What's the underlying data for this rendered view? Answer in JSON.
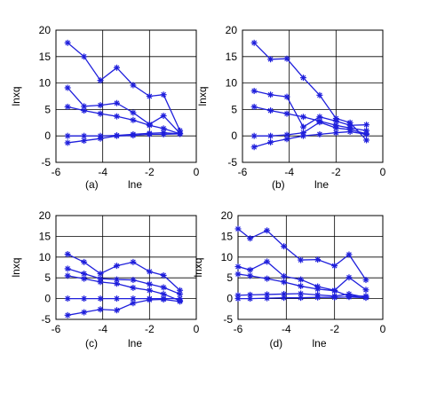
{
  "colors": {
    "series": "#1f1fdc",
    "axis": "#000000"
  },
  "chart_data": [
    {
      "type": "line",
      "panel": "(a)",
      "xlabel": "lne",
      "ylabel": "lnxq",
      "xlim": [
        -6,
        0
      ],
      "ylim": [
        -5,
        20
      ],
      "xticks": [
        -6,
        -4,
        -2,
        0
      ],
      "yticks": [
        -5,
        0,
        5,
        10,
        15,
        20
      ],
      "grid": true,
      "x": [
        -5.5,
        -4.8,
        -4.1,
        -3.4,
        -2.7,
        -2.0,
        -1.4,
        -0.7
      ],
      "series": [
        {
          "values": [
            17.6,
            15.0,
            10.5,
            12.9,
            9.6,
            7.5,
            7.8,
            1.0
          ]
        },
        {
          "values": [
            9.1,
            5.6,
            5.8,
            6.2,
            4.4,
            2.2,
            3.8,
            0.5
          ]
        },
        {
          "values": [
            5.5,
            4.8,
            4.2,
            3.7,
            3.0,
            2.0,
            1.4,
            0.4
          ]
        },
        {
          "values": [
            0.0,
            0.0,
            0.0,
            0.1,
            0.3,
            0.5,
            0.6,
            0.4
          ]
        },
        {
          "values": [
            -1.3,
            -0.9,
            -0.5,
            0.0,
            0.1,
            0.3,
            0.3,
            0.4
          ]
        }
      ]
    },
    {
      "type": "line",
      "panel": "(b)",
      "xlabel": "lne",
      "ylabel": "lnxq",
      "xlim": [
        -6,
        0
      ],
      "ylim": [
        -5,
        20
      ],
      "xticks": [
        -6,
        -4,
        -2,
        0
      ],
      "yticks": [
        -5,
        0,
        5,
        10,
        15,
        20
      ],
      "grid": true,
      "x": [
        -5.5,
        -4.8,
        -4.1,
        -3.4,
        -2.7,
        -2.0,
        -1.4,
        -0.7
      ],
      "series": [
        {
          "values": [
            17.6,
            14.5,
            14.6,
            11.0,
            7.7,
            3.3,
            2.5,
            -0.8
          ]
        },
        {
          "values": [
            8.5,
            7.8,
            7.4,
            1.7,
            3.6,
            2.8,
            2.0,
            2.1
          ]
        },
        {
          "values": [
            5.5,
            4.8,
            4.2,
            3.6,
            2.8,
            2.0,
            1.5,
            1.0
          ]
        },
        {
          "values": [
            0.0,
            0.0,
            0.2,
            0.6,
            2.6,
            1.5,
            1.2,
            0.4
          ]
        },
        {
          "values": [
            -2.1,
            -1.2,
            -0.6,
            0.0,
            0.3,
            0.6,
            0.8,
            0.3
          ]
        }
      ]
    },
    {
      "type": "line",
      "panel": "(c)",
      "xlabel": "lne",
      "ylabel": "lnxq",
      "xlim": [
        -6,
        0
      ],
      "ylim": [
        -5,
        20
      ],
      "xticks": [
        -6,
        -4,
        -2,
        0
      ],
      "yticks": [
        -5,
        0,
        5,
        10,
        15,
        20
      ],
      "grid": true,
      "x": [
        -5.5,
        -4.8,
        -4.1,
        -3.4,
        -2.7,
        -2.0,
        -1.4,
        -0.7
      ],
      "series": [
        {
          "values": [
            10.7,
            8.8,
            6.0,
            7.9,
            8.8,
            6.5,
            5.6,
            2.0
          ]
        },
        {
          "values": [
            7.2,
            6.0,
            4.8,
            4.6,
            4.5,
            3.5,
            2.7,
            1.1
          ]
        },
        {
          "values": [
            5.5,
            4.8,
            4.0,
            3.6,
            2.6,
            2.0,
            1.1,
            -0.5
          ]
        },
        {
          "values": [
            0.0,
            0.0,
            0.0,
            0.0,
            0.0,
            0.0,
            0.0,
            0.0
          ]
        },
        {
          "values": [
            -4.0,
            -3.3,
            -2.6,
            -2.8,
            -1.1,
            -0.3,
            -0.2,
            -0.7
          ]
        }
      ]
    },
    {
      "type": "line",
      "panel": "(d)",
      "xlabel": "lne",
      "ylabel": "lnxq",
      "xlim": [
        -6,
        0
      ],
      "ylim": [
        -5,
        20
      ],
      "xticks": [
        -6,
        -4,
        -2,
        0
      ],
      "yticks": [
        -5,
        0,
        5,
        10,
        15,
        20
      ],
      "grid": true,
      "x": [
        -5.5,
        -4.8,
        -4.1,
        -3.4,
        -2.7,
        -2.0,
        -1.4,
        -0.7
      ],
      "series": [
        {
          "values": [
            16.8,
            14.5,
            16.4,
            12.6,
            9.3,
            9.4,
            7.9,
            10.6,
            4.5
          ],
          "x": [
            -6.0,
            -5.5,
            -4.8,
            -4.1,
            -3.4,
            -2.7,
            -2.0,
            -1.4,
            -0.7
          ]
        },
        {
          "values": [
            7.7,
            6.9,
            8.9,
            5.4,
            4.6,
            2.9,
            2.0,
            5.1,
            2.1
          ],
          "x": [
            -6.0,
            -5.5,
            -4.8,
            -4.1,
            -3.4,
            -2.7,
            -2.0,
            -1.4,
            -0.7
          ]
        },
        {
          "values": [
            5.9,
            5.5,
            4.8,
            4.0,
            3.0,
            2.3,
            1.9,
            0.6,
            0.6
          ],
          "x": [
            -6.0,
            -5.5,
            -4.8,
            -4.1,
            -3.4,
            -2.7,
            -2.0,
            -1.4,
            -0.7
          ]
        },
        {
          "values": [
            0.8,
            0.9,
            1.0,
            1.1,
            1.2,
            0.9,
            0.6,
            1.1,
            0.3
          ],
          "x": [
            -6.0,
            -5.5,
            -4.8,
            -4.1,
            -3.4,
            -2.7,
            -2.0,
            -1.4,
            -0.7
          ]
        },
        {
          "values": [
            0.0,
            0.0,
            0.1,
            0.2,
            0.2,
            0.3,
            0.3,
            0.4,
            0.2
          ],
          "x": [
            -6.0,
            -5.5,
            -4.8,
            -4.1,
            -3.4,
            -2.7,
            -2.0,
            -1.4,
            -0.7
          ]
        }
      ]
    }
  ]
}
